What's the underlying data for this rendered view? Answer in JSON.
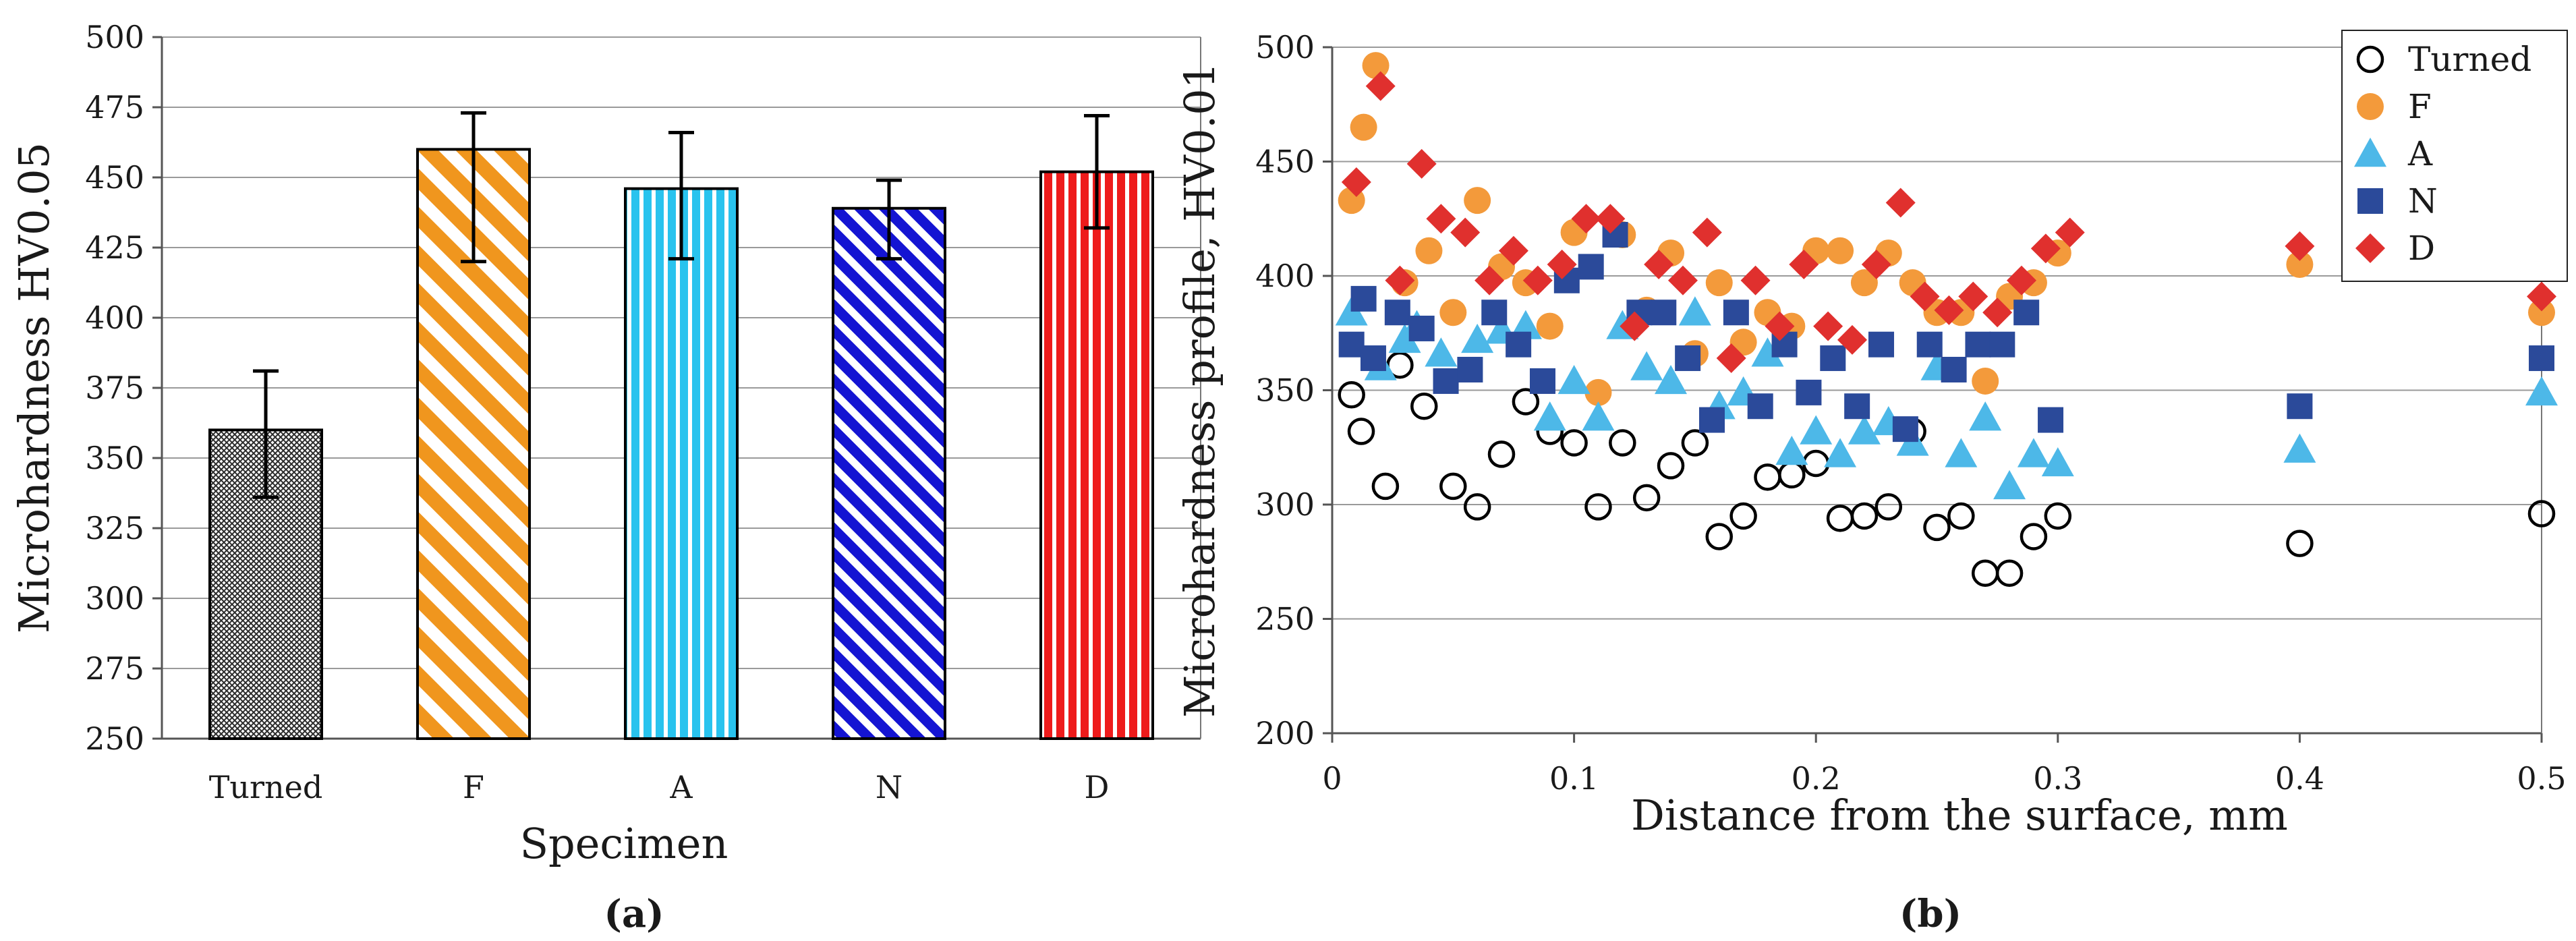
{
  "chart_data": [
    {
      "type": "bar",
      "panel_label": "(a)",
      "title": "",
      "xlabel": "Specimen",
      "ylabel": "Microhardness HV0.05",
      "ylim": [
        250,
        500
      ],
      "yticks": [
        250,
        275,
        300,
        325,
        350,
        375,
        400,
        425,
        450,
        475,
        500
      ],
      "grid": true,
      "categories": [
        "Turned",
        "F",
        "A",
        "N",
        "D"
      ],
      "values": [
        360,
        460,
        446,
        439,
        452
      ],
      "error_low": [
        336,
        420,
        421,
        421,
        432
      ],
      "error_high": [
        381,
        473,
        466,
        449,
        472
      ],
      "colors": [
        "#2b2b2b",
        "#f0961e",
        "#29c3ee",
        "#1414d2",
        "#ee1b1b"
      ],
      "patterns": [
        "crosshatch",
        "diagonal",
        "vertical",
        "diagonal",
        "vertical"
      ]
    },
    {
      "type": "scatter",
      "panel_label": "(b)",
      "title": "",
      "xlabel": "Distance from the surface, mm",
      "ylabel": "Microhardness profile, HV0.01",
      "xlim": [
        0,
        0.5
      ],
      "ylim": [
        200,
        500
      ],
      "xticks": [
        0,
        0.1,
        0.2,
        0.3,
        0.4,
        0.5
      ],
      "xtick_labels": [
        "0",
        "0.1",
        "0.2",
        "0.3",
        "0.4",
        "0.5"
      ],
      "yticks": [
        200,
        250,
        300,
        350,
        400,
        450,
        500
      ],
      "grid": true,
      "legend_position": "top-right",
      "series": [
        {
          "name": "Turned",
          "marker": "circle-open",
          "color": "#000000",
          "x": [
            0.008,
            0.012,
            0.022,
            0.028,
            0.038,
            0.05,
            0.06,
            0.07,
            0.08,
            0.09,
            0.1,
            0.11,
            0.12,
            0.13,
            0.14,
            0.15,
            0.16,
            0.17,
            0.18,
            0.19,
            0.2,
            0.21,
            0.22,
            0.23,
            0.24,
            0.25,
            0.26,
            0.27,
            0.28,
            0.29,
            0.3,
            0.4,
            0.5
          ],
          "y": [
            348,
            332,
            308,
            361,
            343,
            308,
            299,
            322,
            345,
            332,
            327,
            299,
            327,
            303,
            317,
            327,
            286,
            295,
            312,
            313,
            318,
            294,
            295,
            299,
            332,
            290,
            295,
            270,
            270,
            286,
            295,
            283,
            296
          ]
        },
        {
          "name": "F",
          "marker": "circle-filled",
          "color": "#f39a3b",
          "x": [
            0.008,
            0.013,
            0.018,
            0.03,
            0.04,
            0.05,
            0.06,
            0.07,
            0.08,
            0.09,
            0.1,
            0.11,
            0.12,
            0.13,
            0.14,
            0.15,
            0.16,
            0.17,
            0.18,
            0.19,
            0.2,
            0.21,
            0.22,
            0.23,
            0.24,
            0.25,
            0.26,
            0.27,
            0.28,
            0.29,
            0.3,
            0.4,
            0.5
          ],
          "y": [
            433,
            465,
            492,
            397,
            411,
            384,
            433,
            404,
            397,
            378,
            419,
            349,
            418,
            385,
            410,
            366,
            397,
            371,
            384,
            378,
            411,
            411,
            397,
            410,
            397,
            384,
            384,
            354,
            391,
            397,
            410,
            405,
            384
          ]
        },
        {
          "name": "A",
          "marker": "triangle",
          "color": "#4db8e8",
          "x": [
            0.008,
            0.02,
            0.03,
            0.035,
            0.045,
            0.06,
            0.07,
            0.08,
            0.09,
            0.1,
            0.11,
            0.12,
            0.13,
            0.14,
            0.15,
            0.16,
            0.17,
            0.18,
            0.19,
            0.2,
            0.21,
            0.22,
            0.23,
            0.24,
            0.25,
            0.26,
            0.27,
            0.28,
            0.29,
            0.3,
            0.4,
            0.5
          ],
          "y": [
            384,
            360,
            372,
            378,
            366,
            372,
            376,
            378,
            338,
            354,
            338,
            378,
            360,
            354,
            384,
            343,
            349,
            366,
            323,
            332,
            322,
            332,
            336,
            327,
            360,
            322,
            338,
            308,
            322,
            318,
            324,
            349
          ]
        },
        {
          "name": "N",
          "marker": "square",
          "color": "#2b4a9a",
          "x": [
            0.008,
            0.013,
            0.017,
            0.027,
            0.037,
            0.047,
            0.057,
            0.067,
            0.077,
            0.087,
            0.097,
            0.107,
            0.117,
            0.127,
            0.137,
            0.147,
            0.157,
            0.167,
            0.177,
            0.187,
            0.197,
            0.207,
            0.217,
            0.227,
            0.237,
            0.247,
            0.257,
            0.267,
            0.277,
            0.287,
            0.297,
            0.4,
            0.5
          ],
          "y": [
            370,
            390,
            364,
            384,
            377,
            354,
            359,
            384,
            370,
            354,
            398,
            404,
            418,
            384,
            384,
            364,
            337,
            384,
            343,
            370,
            349,
            364,
            343,
            370,
            333,
            370,
            359,
            370,
            370,
            384,
            337,
            343,
            364
          ]
        },
        {
          "name": "D",
          "marker": "diamond",
          "color": "#e0302e",
          "x": [
            0.01,
            0.02,
            0.028,
            0.037,
            0.045,
            0.055,
            0.065,
            0.075,
            0.085,
            0.095,
            0.105,
            0.115,
            0.125,
            0.135,
            0.145,
            0.155,
            0.165,
            0.175,
            0.185,
            0.195,
            0.205,
            0.215,
            0.225,
            0.235,
            0.245,
            0.255,
            0.265,
            0.275,
            0.285,
            0.295,
            0.305,
            0.4,
            0.5
          ],
          "y": [
            441,
            483,
            398,
            449,
            425,
            419,
            398,
            411,
            398,
            405,
            425,
            425,
            378,
            405,
            398,
            419,
            364,
            398,
            378,
            405,
            378,
            372,
            405,
            432,
            391,
            385,
            391,
            384,
            398,
            412,
            419,
            413,
            391
          ]
        }
      ]
    }
  ]
}
